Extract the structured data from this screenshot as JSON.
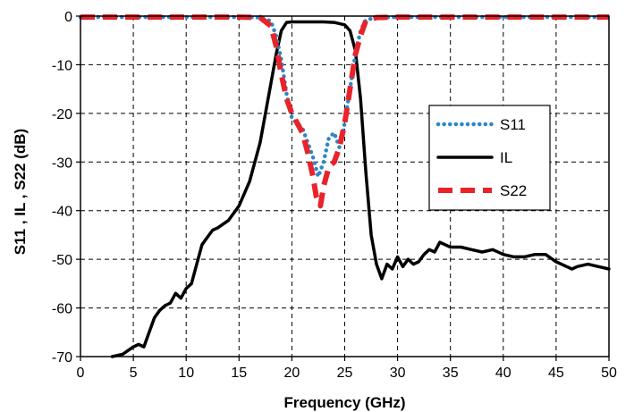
{
  "chart_data": {
    "type": "line",
    "title": "",
    "xlabel": "Frequency (GHz)",
    "ylabel": "S11 , IL , S22 (dB)",
    "xlim": [
      0,
      50
    ],
    "ylim": [
      -70,
      0
    ],
    "xticks": [
      "0",
      "5",
      "10",
      "15",
      "20",
      "25",
      "30",
      "35",
      "40",
      "45",
      "50"
    ],
    "yticks": [
      "0",
      "-10",
      "-20",
      "-30",
      "-40",
      "-50",
      "-60",
      "-70"
    ],
    "grid": true,
    "legend_position": "right",
    "series": [
      {
        "name": "S11",
        "color": "#2E86C8",
        "style": "dotted",
        "x": [
          0,
          5,
          10,
          15,
          17,
          18,
          18.5,
          19,
          19.5,
          20,
          20.5,
          21,
          21.5,
          22,
          22.5,
          23,
          23.5,
          24,
          24.5,
          25,
          25.5,
          26,
          26.5,
          27,
          28,
          30,
          35,
          40,
          45,
          50
        ],
        "y": [
          -0.2,
          -0.2,
          -0.2,
          -0.2,
          -0.3,
          -1.0,
          -4.0,
          -9.0,
          -16.0,
          -21.0,
          -22.0,
          -23.0,
          -26.0,
          -29.0,
          -33.0,
          -30.0,
          -25.0,
          -24.0,
          -27.0,
          -22.0,
          -15.0,
          -8.0,
          -3.0,
          -0.8,
          -0.3,
          -0.2,
          -0.2,
          -0.2,
          -0.2,
          -0.2
        ]
      },
      {
        "name": "IL",
        "color": "#000000",
        "style": "solid",
        "x": [
          3,
          4,
          5,
          5.5,
          6,
          6.5,
          7,
          7.5,
          8,
          8.5,
          9,
          9.5,
          10,
          10.5,
          11,
          11.5,
          12,
          12.5,
          13,
          14,
          15,
          16,
          17,
          18,
          18.5,
          19,
          19.5,
          20,
          21,
          22,
          23,
          24,
          25,
          25.5,
          26,
          26.5,
          27,
          27.5,
          28,
          28.5,
          29,
          29.5,
          30,
          30.5,
          31,
          31.5,
          32,
          32.5,
          33,
          33.5,
          34,
          34.5,
          35,
          36,
          37,
          38,
          39,
          40,
          41,
          42,
          43,
          44,
          45,
          46,
          46.5,
          47,
          48,
          49,
          50
        ],
        "y": [
          -70,
          -69.5,
          -68,
          -67.5,
          -68,
          -65,
          -62,
          -60.5,
          -59.5,
          -59,
          -57,
          -58,
          -56,
          -55,
          -51,
          -47,
          -45.5,
          -44,
          -43.5,
          -42,
          -39,
          -34,
          -26,
          -14,
          -8,
          -3,
          -1.3,
          -1.2,
          -1.2,
          -1.2,
          -1.2,
          -1.3,
          -1.8,
          -3,
          -7,
          -17,
          -32,
          -45,
          -51,
          -54,
          -51,
          -52,
          -49.5,
          -51.5,
          -50,
          -51,
          -50.5,
          -49,
          -48,
          -48.5,
          -46.5,
          -47,
          -47.5,
          -47.5,
          -48,
          -48.5,
          -48,
          -49,
          -49.5,
          -49.5,
          -49,
          -49,
          -50.5,
          -51.5,
          -52,
          -51.5,
          -51,
          -51.5,
          -52
        ]
      },
      {
        "name": "S22",
        "color": "#E8232A",
        "style": "dashed",
        "x": [
          0,
          5,
          10,
          15,
          17,
          18,
          18.5,
          19,
          19.5,
          20,
          20.5,
          21,
          21.5,
          22,
          22.3,
          22.7,
          23,
          23.5,
          24,
          24.5,
          25,
          25.5,
          26,
          26.5,
          27,
          28,
          30,
          35,
          40,
          45,
          50
        ],
        "y": [
          -0.2,
          -0.2,
          -0.2,
          -0.2,
          -0.3,
          -2.0,
          -6.0,
          -12.0,
          -17.0,
          -20.0,
          -22.0,
          -24.0,
          -28.0,
          -33.0,
          -37.0,
          -39.0,
          -35.0,
          -31.0,
          -30.0,
          -27.0,
          -22.0,
          -15.0,
          -8.0,
          -4.0,
          -1.0,
          -0.3,
          -0.2,
          -0.2,
          -0.2,
          -0.2,
          -0.2
        ]
      }
    ]
  }
}
